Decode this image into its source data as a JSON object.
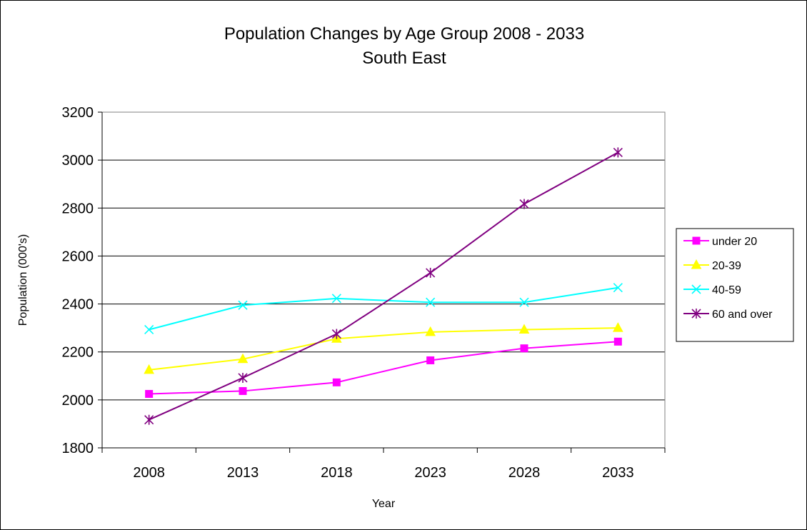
{
  "chart_data": {
    "type": "line",
    "title": "Population Changes by Age Group 2008 - 2033",
    "subtitle": "South East",
    "xlabel": "Year",
    "ylabel": "Population (000's)",
    "categories": [
      "2008",
      "2013",
      "2018",
      "2023",
      "2028",
      "2033"
    ],
    "ylim": [
      1800,
      3200
    ],
    "yticks": [
      1800,
      2000,
      2200,
      2400,
      2600,
      2800,
      3000,
      3200
    ],
    "grid": true,
    "legend_position": "right",
    "series": [
      {
        "name": "under 20",
        "color": "#ff00ff",
        "marker": "square",
        "values": [
          2025,
          2037,
          2073,
          2165,
          2215,
          2243
        ]
      },
      {
        "name": "20-39",
        "color": "#ffff00",
        "marker": "triangle",
        "values": [
          2125,
          2170,
          2255,
          2283,
          2293,
          2300
        ]
      },
      {
        "name": "40-59",
        "color": "#00ffff",
        "marker": "x",
        "values": [
          2293,
          2395,
          2423,
          2407,
          2407,
          2468
        ]
      },
      {
        "name": "60 and over",
        "color": "#800080",
        "marker": "star",
        "values": [
          1917,
          2092,
          2275,
          2530,
          2817,
          3032
        ]
      }
    ]
  }
}
